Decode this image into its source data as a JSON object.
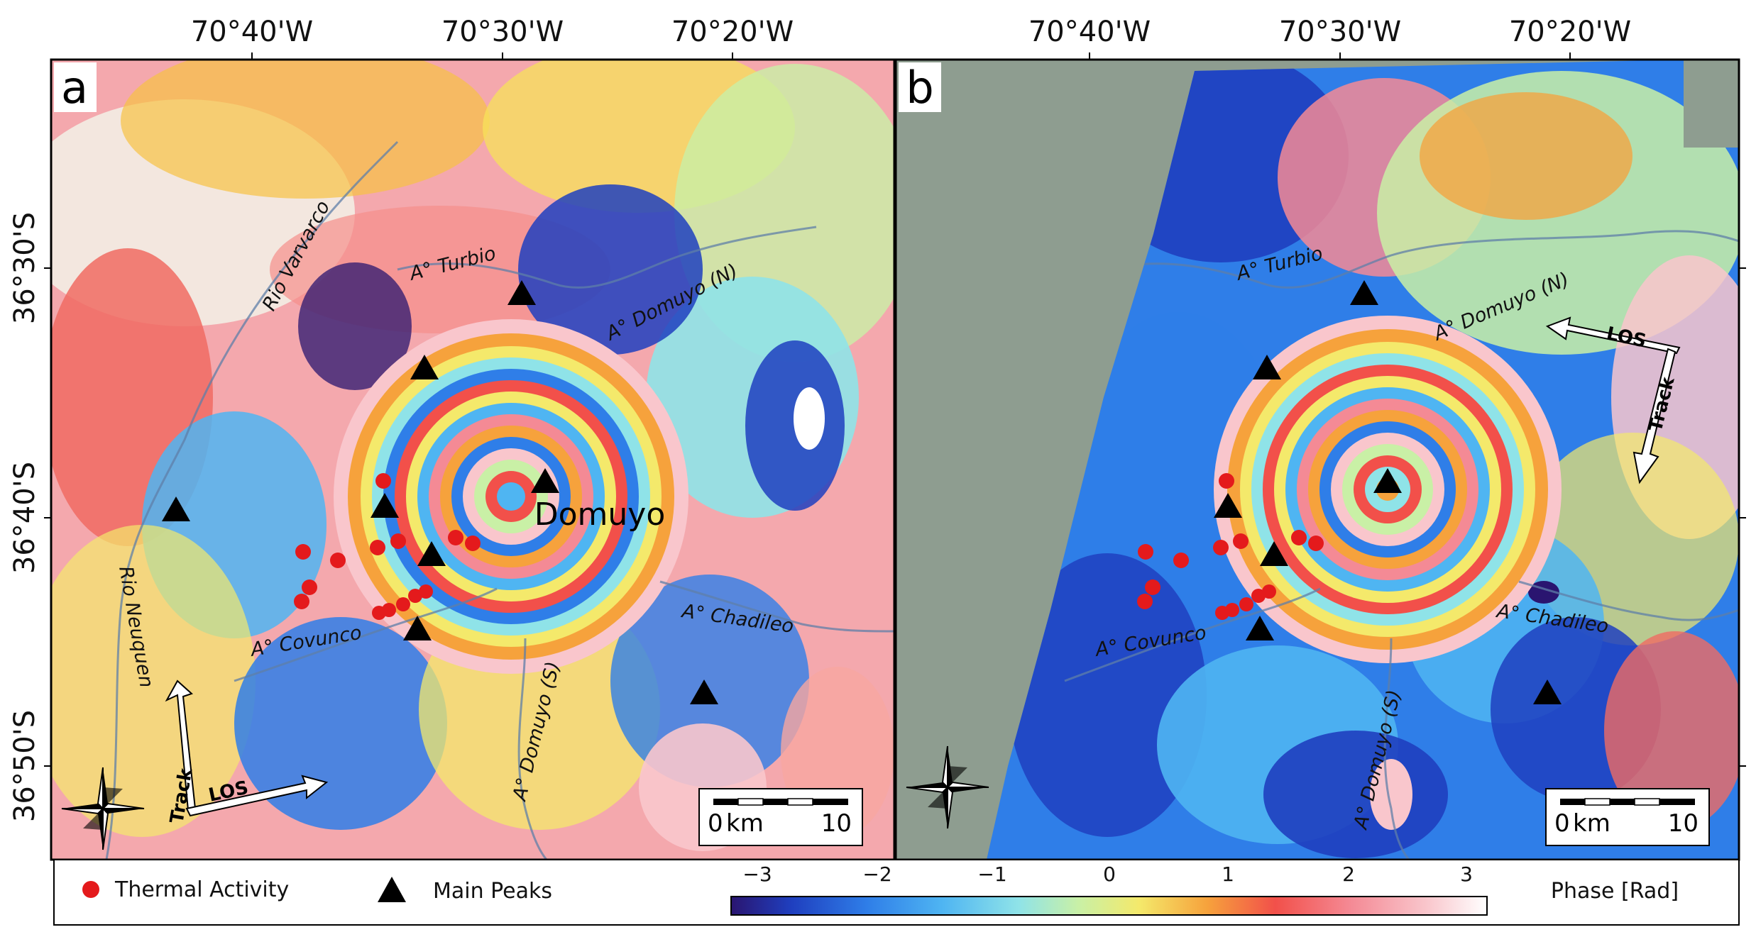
{
  "figure": {
    "lon_labels": [
      "70°40'W",
      "70°30'W",
      "70°20'W"
    ],
    "lat_labels": [
      "36°30'S",
      "36°40'S",
      "36°50'S"
    ],
    "panels": [
      {
        "letter": "a",
        "volcano_name": "Domuyo",
        "rivers": [
          "Rio Varvarco",
          "A° Turbio",
          "A° Domuyo (N)",
          "A° Covunco",
          "A° Domuyo (S)",
          "A° Chadileo",
          "Rio Neuquen"
        ],
        "track_label": "Track",
        "los_label": "LOS",
        "scale": {
          "start": "0",
          "unit": "km",
          "end": "10"
        }
      },
      {
        "letter": "b",
        "rivers": [
          "A° Turbio",
          "A° Domuyo (N)",
          "A° Covunco",
          "A° Domuyo (S)",
          "A° Chadileo"
        ],
        "track_label": "Track",
        "los_label": "LOS",
        "scale": {
          "start": "0",
          "unit": "km",
          "end": "10"
        }
      }
    ],
    "legend": {
      "thermal": "Thermal Activity",
      "peaks": "Main Peaks",
      "colorbar_title": "Phase [Rad]",
      "colorbar_ticks": [
        "−3",
        "−2",
        "−1",
        "0",
        "1",
        "2",
        "3"
      ],
      "colorbar_range": [
        -3.14,
        3.14
      ]
    },
    "colors": {
      "thermal_marker": "#e41a1c",
      "peak_marker": "#000000",
      "no_data": "#8e9d90",
      "colormap": [
        "#2a1570",
        "#1f3fbf",
        "#2f7ee8",
        "#4fb5f2",
        "#8fe3e8",
        "#c9f0a6",
        "#f4e96b",
        "#f6a23c",
        "#f2504a",
        "#f48a95",
        "#f9c6cc",
        "#ffffff"
      ]
    }
  }
}
